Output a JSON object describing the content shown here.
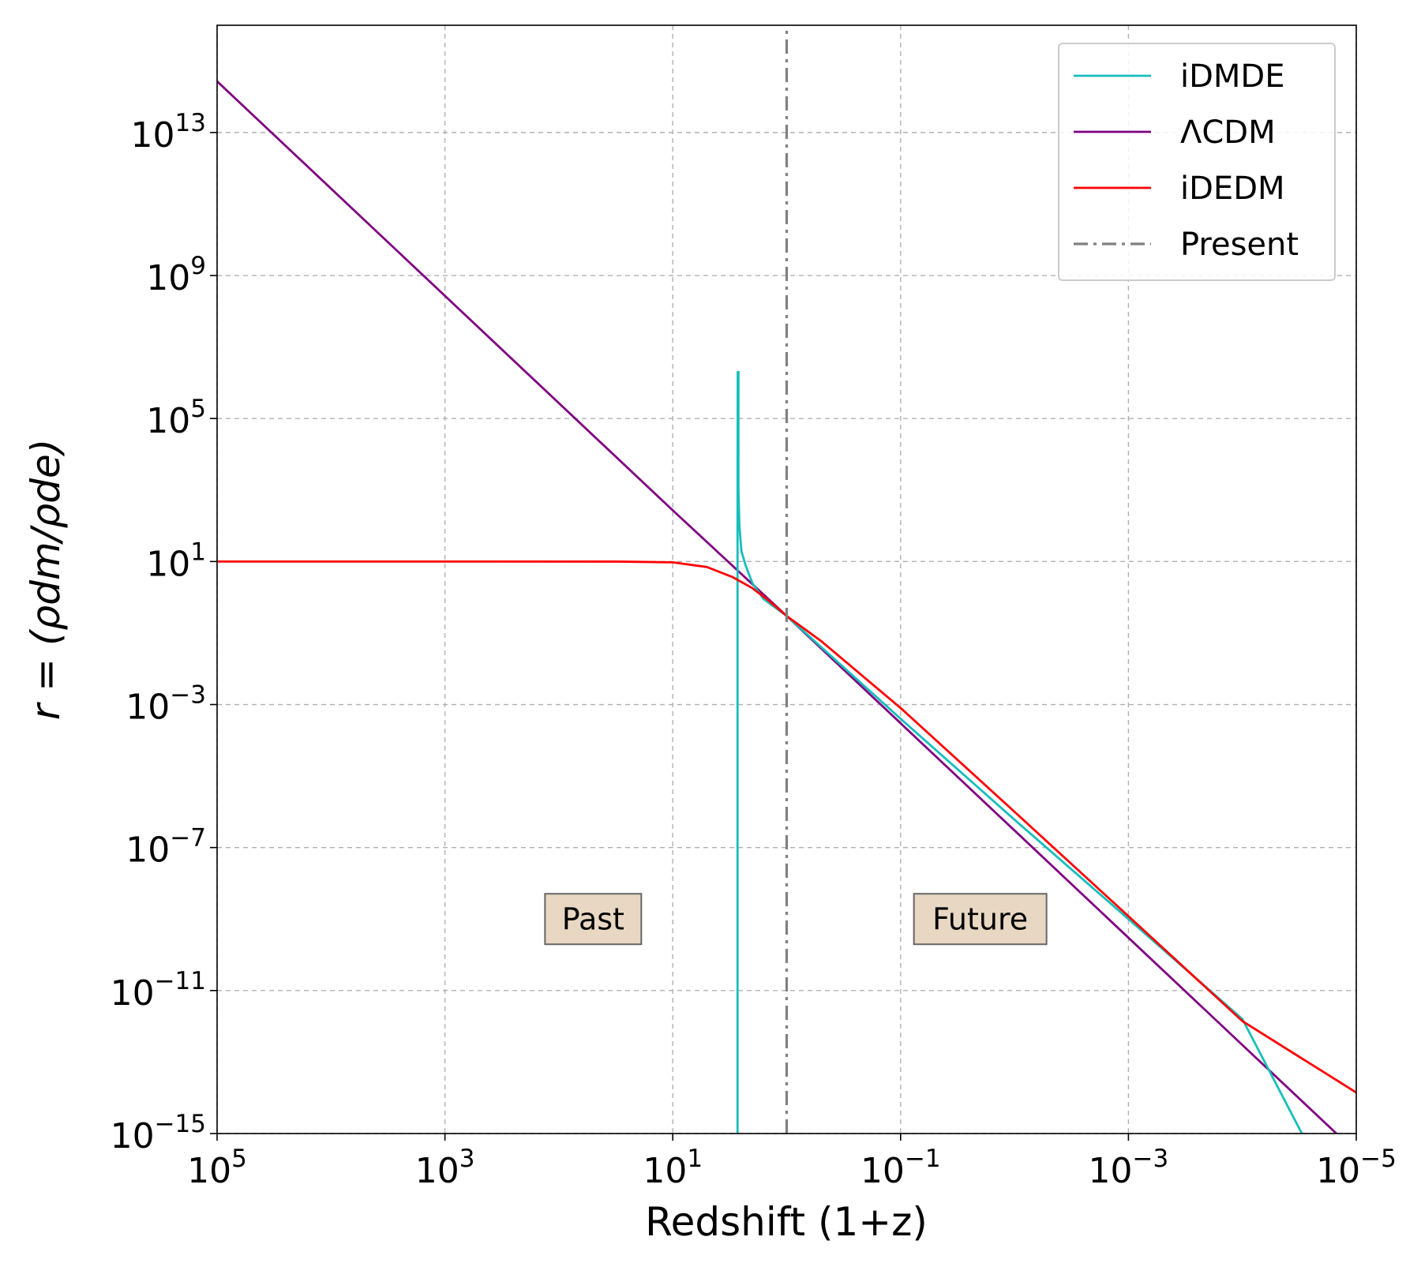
{
  "chart_data": {
    "type": "line",
    "xlabel": "Redshift (1+z)",
    "ylabel": "r = (ρdm/ρde)",
    "xscale": "log",
    "yscale": "log",
    "xlim": [
      100000,
      1e-05
    ],
    "ylim": [
      1e-15,
      1e+16
    ],
    "grid": true,
    "x_ticks": [
      {
        "value": 100000,
        "base": "10",
        "exp": "5"
      },
      {
        "value": 1000,
        "base": "10",
        "exp": "3"
      },
      {
        "value": 10,
        "base": "10",
        "exp": "1"
      },
      {
        "value": 0.1,
        "base": "10",
        "exp": "−1"
      },
      {
        "value": 0.001,
        "base": "10",
        "exp": "−3"
      },
      {
        "value": 1e-05,
        "base": "10",
        "exp": "−5"
      }
    ],
    "y_ticks": [
      {
        "value": 10000000000000.0,
        "base": "10",
        "exp": "13"
      },
      {
        "value": 1000000000.0,
        "base": "10",
        "exp": "9"
      },
      {
        "value": 100000.0,
        "base": "10",
        "exp": "5"
      },
      {
        "value": 10,
        "base": "10",
        "exp": "1"
      },
      {
        "value": 0.001,
        "base": "10",
        "exp": "−3"
      },
      {
        "value": 1e-07,
        "base": "10",
        "exp": "−7"
      },
      {
        "value": 1e-11,
        "base": "10",
        "exp": "−11"
      },
      {
        "value": 1e-15,
        "base": "10",
        "exp": "−15"
      }
    ],
    "series": [
      {
        "name": "iDMDE",
        "color": "#17bebb",
        "style": "solid",
        "points": [
          [
            2.7,
            1e-15
          ],
          [
            2.7,
            0.5
          ],
          [
            2.7,
            400
          ],
          [
            2.69,
            2000000.0
          ],
          [
            2.65,
            2000000.0
          ],
          [
            2.65,
            1000
          ],
          [
            2.6,
            100
          ],
          [
            2.5,
            20
          ],
          [
            2.3,
            8
          ],
          [
            2.0,
            2.5
          ],
          [
            1.6,
            0.9
          ],
          [
            1.0,
            0.3
          ],
          [
            0.1,
            0.0004
          ],
          [
            0.01,
            6e-07
          ],
          [
            0.001,
            1e-09
          ],
          [
            0.0001,
            1.6e-12
          ],
          [
            3e-05,
            1e-15
          ]
        ]
      },
      {
        "name": "ΛCDM",
        "color": "#800080",
        "style": "solid",
        "points": [
          [
            100000,
            270000000000000.0
          ],
          [
            10,
            270
          ],
          [
            1.0,
            0.3
          ],
          [
            0.1,
            0.0003
          ],
          [
            0.001,
            3e-10
          ],
          [
            1e-05,
            3e-16
          ]
        ]
      },
      {
        "name": "iDEDM",
        "color": "#ff0000",
        "style": "solid",
        "points": [
          [
            100000,
            10
          ],
          [
            1000,
            10
          ],
          [
            30,
            9.95
          ],
          [
            10,
            9.5
          ],
          [
            5,
            7
          ],
          [
            3,
            3.7
          ],
          [
            2,
            1.8
          ],
          [
            1.5,
            0.9
          ],
          [
            1.0,
            0.3
          ],
          [
            0.5,
            0.06
          ],
          [
            0.1,
            0.0008
          ],
          [
            0.01,
            1e-06
          ],
          [
            0.001,
            1.2e-09
          ],
          [
            0.0001,
            1.4e-12
          ],
          [
            1e-05,
            1.4e-14
          ]
        ]
      },
      {
        "name": "Present",
        "color": "#808080",
        "style": "dashdot",
        "points": [
          [
            1.0,
            1e-15
          ],
          [
            1.0,
            1e+16
          ]
        ]
      }
    ],
    "legend_entries": [
      "iDMDE",
      "ΛCDM",
      "iDEDM",
      "Present"
    ],
    "legend_position": "top-right",
    "annotations": [
      {
        "text": "Past",
        "x": 50,
        "y": 1e-09,
        "box_color": "#e8d7c2"
      },
      {
        "text": "Future",
        "x": 0.02,
        "y": 1e-09,
        "box_color": "#e8d7c2"
      }
    ]
  }
}
